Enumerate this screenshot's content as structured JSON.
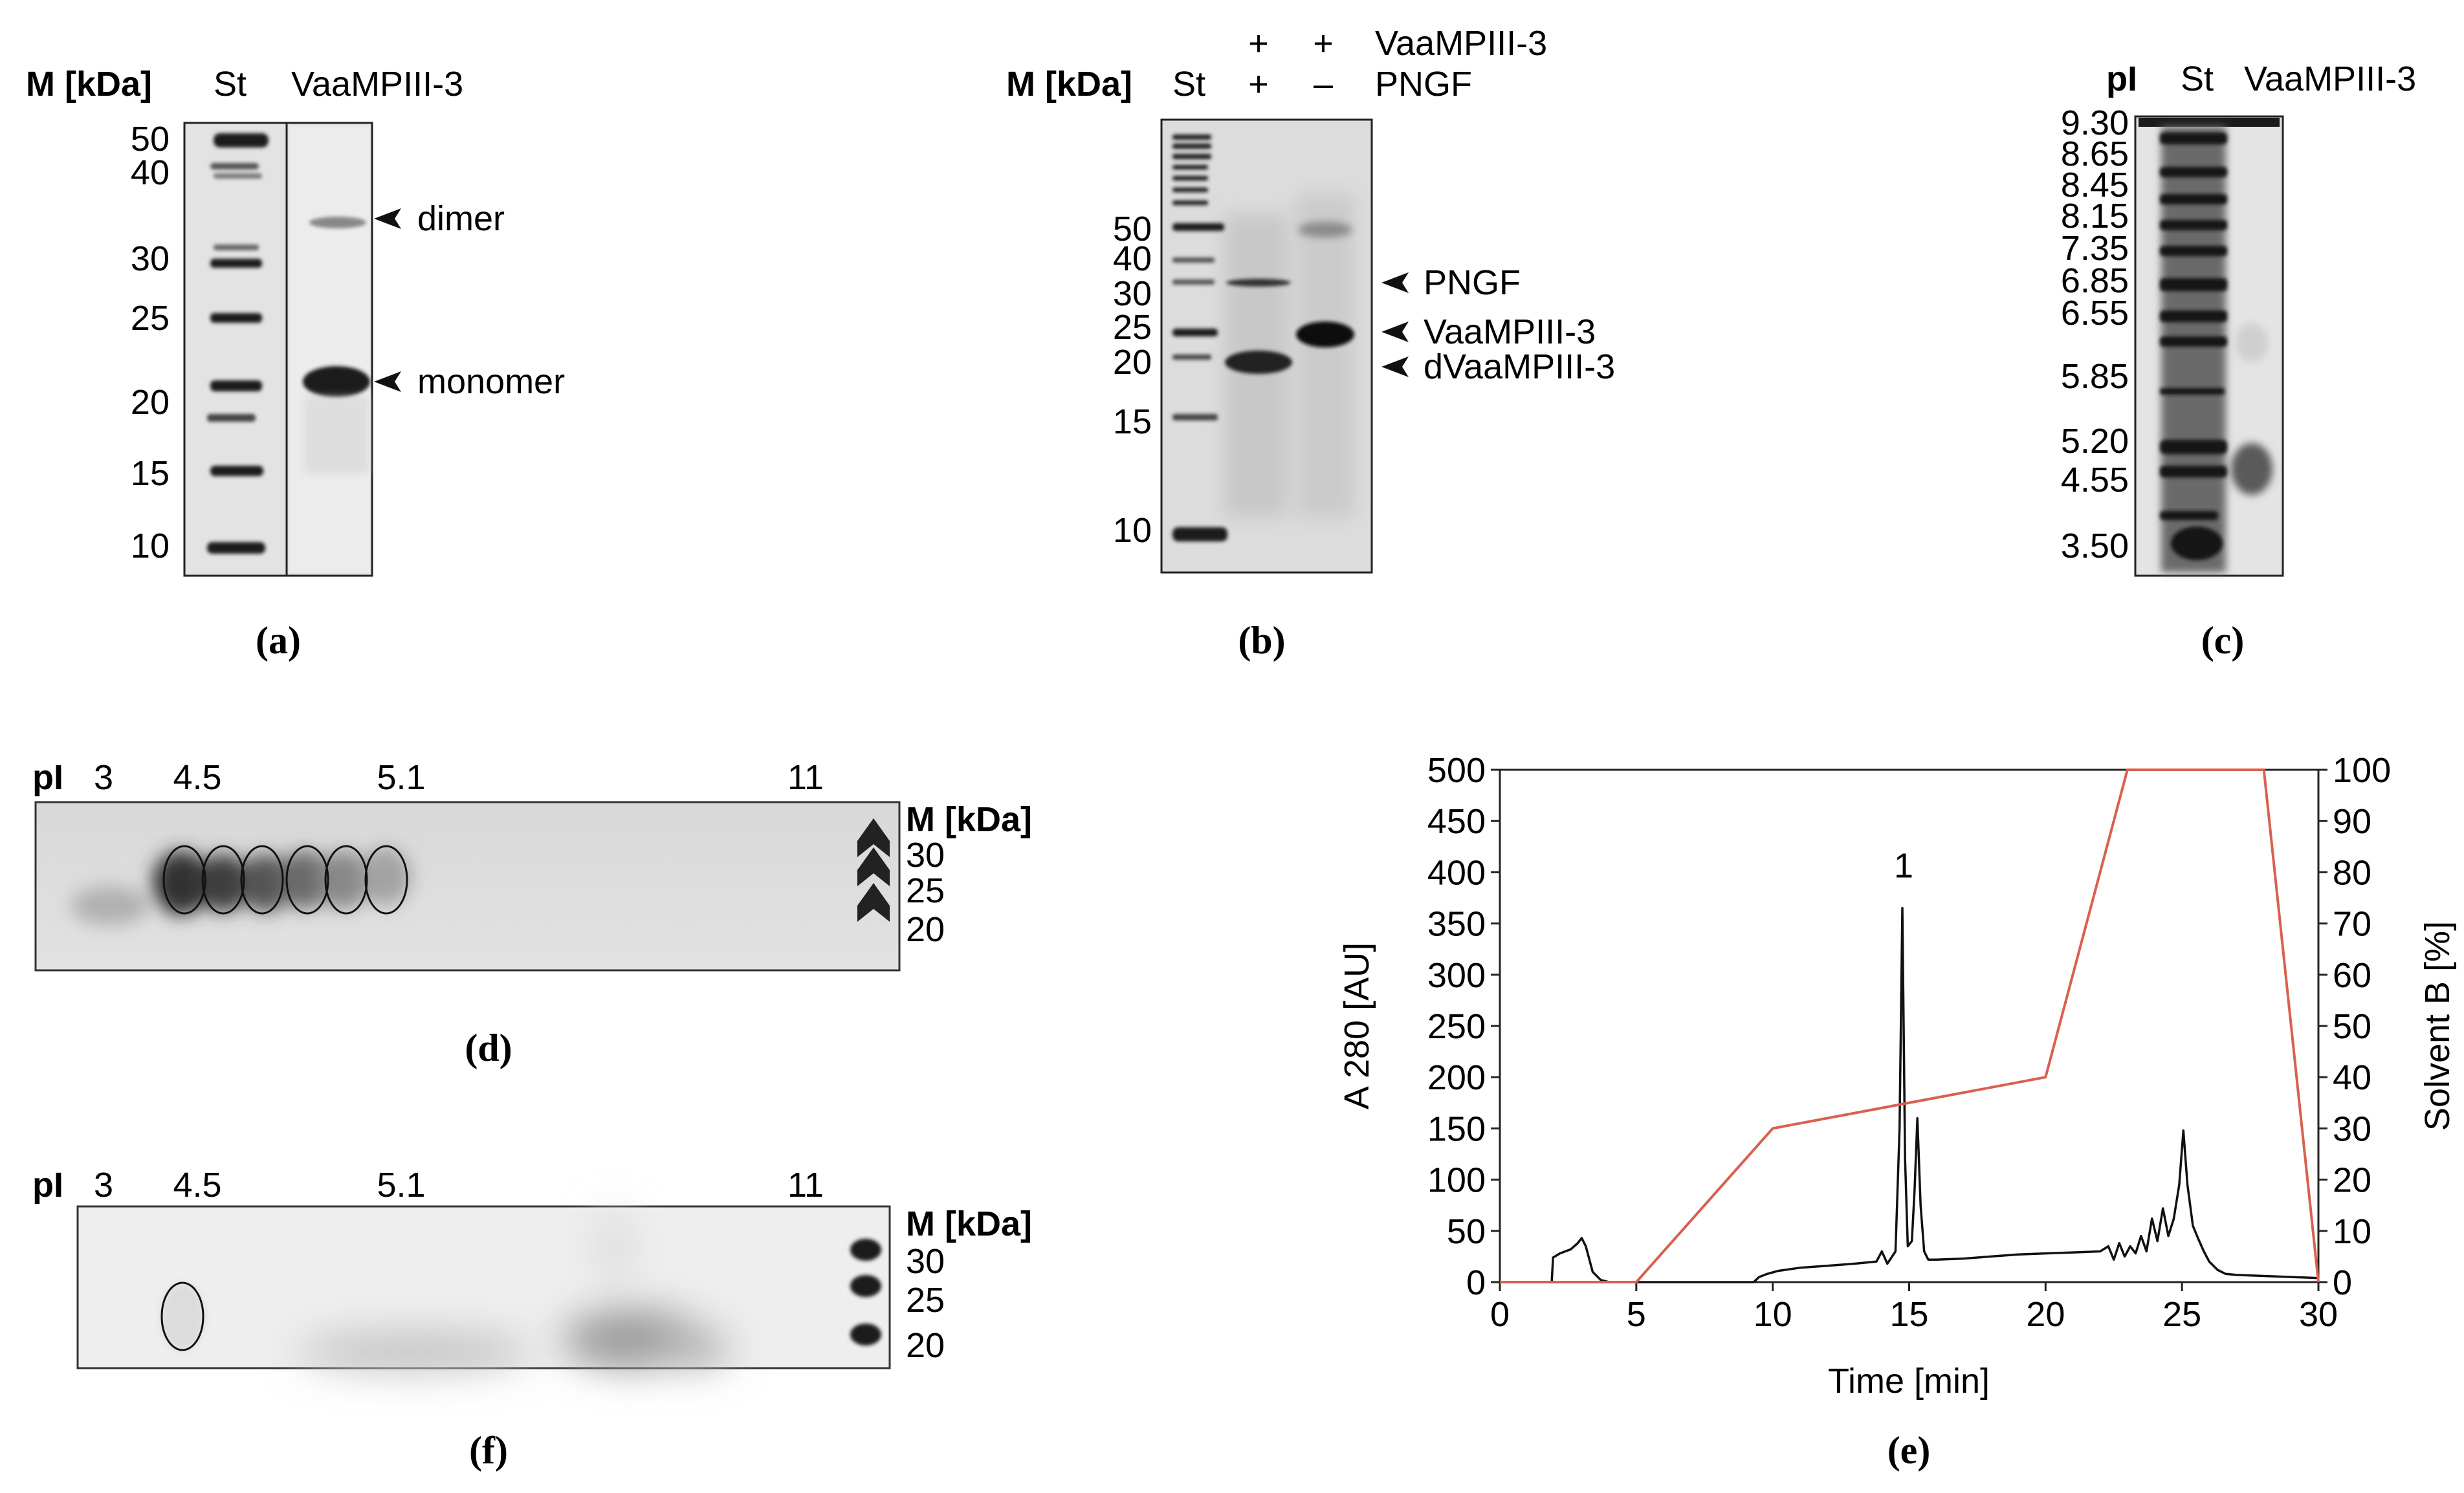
{
  "panels": {
    "a": {
      "caption": "(a)",
      "marker_header": "M [kDa]",
      "lane_std": "St",
      "lane_sample": "VaaMPIII-3",
      "marker_values": [
        "50",
        "40",
        "30",
        "25",
        "20",
        "15",
        "10"
      ],
      "annotations": [
        "dimer",
        "monomer"
      ]
    },
    "b": {
      "caption": "(b)",
      "marker_header": "M [kDa]",
      "lane_std": "St",
      "row_vaampiii": {
        "lane1": "+",
        "lane2": "+",
        "label": "VaaMPIII-3"
      },
      "row_pngf": {
        "lane1": "+",
        "lane2": "–",
        "label": "PNGF"
      },
      "marker_values": [
        "50",
        "40",
        "30",
        "25",
        "20",
        "15",
        "10"
      ],
      "annotations": [
        "PNGF",
        "VaaMPIII-3",
        "dVaaMPIII-3"
      ]
    },
    "c": {
      "caption": "(c)",
      "header": "pI",
      "lane_std": "St",
      "lane_sample": "VaaMPIII-3",
      "pi_values": [
        "9.30",
        "8.65",
        "8.45",
        "8.15",
        "7.35",
        "6.85",
        "6.55",
        "5.85",
        "5.20",
        "4.55",
        "3.50"
      ]
    },
    "d": {
      "caption": "(d)",
      "pi_label": "pI",
      "pi_ticks": [
        "3",
        "4.5",
        "5.1",
        "11"
      ],
      "marker_header": "M [kDa]",
      "marker_values": [
        "30",
        "25",
        "20"
      ],
      "spot_count": 6
    },
    "f": {
      "caption": "(f)",
      "pi_label": "pI",
      "pi_ticks": [
        "3",
        "4.5",
        "5.1",
        "11"
      ],
      "marker_header": "M [kDa]",
      "marker_values": [
        "30",
        "25",
        "20"
      ],
      "spot_count": 1
    },
    "e": {
      "caption": "(e)"
    }
  },
  "chart_data": {
    "type": "line",
    "xlabel": "Time [min]",
    "ylabel_left": "A 280 [AU]",
    "ylabel_right": "Solvent B [%]",
    "xlim": [
      0,
      30
    ],
    "ylim_left": [
      0,
      500
    ],
    "ylim_right": [
      0,
      100
    ],
    "x_ticks": [
      0,
      5,
      10,
      15,
      20,
      25,
      30
    ],
    "y_ticks_left": [
      0,
      50,
      100,
      150,
      200,
      250,
      300,
      350,
      400,
      450,
      500
    ],
    "y_ticks_right": [
      0,
      10,
      20,
      30,
      40,
      50,
      60,
      70,
      80,
      90,
      100
    ],
    "peak_label": "1",
    "peak_label_at": {
      "x": 14.8,
      "y": 395
    },
    "series": [
      {
        "name": "A280",
        "axis": "left",
        "color": "#111111",
        "x": [
          0,
          1.9,
          1.95,
          2.2,
          2.6,
          2.85,
          3.0,
          3.15,
          3.4,
          3.7,
          4.0,
          6,
          9.3,
          9.5,
          9.8,
          10.2,
          11,
          12,
          13,
          13.8,
          14.0,
          14.2,
          14.5,
          14.65,
          14.75,
          14.85,
          14.95,
          15.1,
          15.2,
          15.3,
          15.42,
          15.55,
          15.7,
          16,
          17,
          18,
          19,
          20,
          21,
          22,
          22.3,
          22.5,
          22.7,
          22.9,
          23.1,
          23.3,
          23.5,
          23.7,
          23.9,
          24.1,
          24.3,
          24.5,
          24.7,
          24.9,
          25.05,
          25.2,
          25.4,
          25.6,
          25.8,
          26.0,
          26.3,
          26.6,
          27,
          28,
          29,
          30
        ],
        "y": [
          0,
          0,
          24,
          28,
          32,
          38,
          43,
          35,
          10,
          2,
          0,
          0,
          0,
          5,
          8,
          11,
          14,
          16,
          18,
          20,
          30,
          18,
          30,
          150,
          365,
          120,
          35,
          40,
          90,
          160,
          75,
          30,
          22,
          22,
          23,
          25,
          27,
          28,
          29,
          30,
          35,
          22,
          38,
          25,
          35,
          28,
          45,
          30,
          62,
          40,
          72,
          45,
          62,
          95,
          148,
          95,
          55,
          42,
          30,
          20,
          12,
          8,
          7,
          6,
          5,
          4
        ]
      },
      {
        "name": "Solvent B",
        "axis": "right",
        "color": "#d9604f",
        "x": [
          0,
          5,
          10,
          20,
          23,
          28,
          30
        ],
        "y": [
          0,
          0,
          30,
          40,
          100,
          100,
          0
        ]
      }
    ]
  },
  "colors": {
    "gradient": "#d9604f",
    "trace": "#111111"
  }
}
